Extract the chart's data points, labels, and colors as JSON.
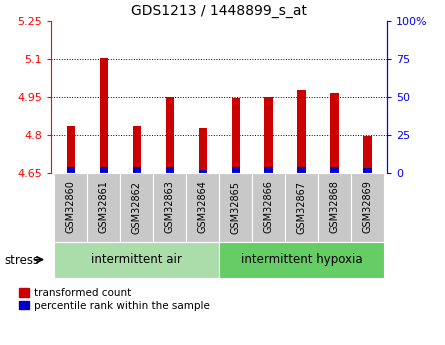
{
  "title": "GDS1213 / 1448899_s_at",
  "samples": [
    "GSM32860",
    "GSM32861",
    "GSM32862",
    "GSM32863",
    "GSM32864",
    "GSM32865",
    "GSM32866",
    "GSM32867",
    "GSM32868",
    "GSM32869"
  ],
  "red_values": [
    4.835,
    5.103,
    4.835,
    4.95,
    4.825,
    4.943,
    4.95,
    4.975,
    4.963,
    4.793
  ],
  "blue_values": [
    0.022,
    0.022,
    0.022,
    0.022,
    0.01,
    0.022,
    0.022,
    0.022,
    0.022,
    0.018
  ],
  "base": 4.65,
  "ylim_min": 4.65,
  "ylim_max": 5.25,
  "yticks_left": [
    4.65,
    4.8,
    4.95,
    5.1,
    5.25
  ],
  "yticks_right": [
    0,
    25,
    50,
    75,
    100
  ],
  "right_label": "%",
  "bar_width": 0.25,
  "red_color": "#cc0000",
  "blue_color": "#0000cc",
  "group1_label": "intermittent air",
  "group2_label": "intermittent hypoxia",
  "group1_indices": [
    0,
    1,
    2,
    3,
    4
  ],
  "group2_indices": [
    5,
    6,
    7,
    8,
    9
  ],
  "stress_label": "stress",
  "legend_red": "transformed count",
  "legend_blue": "percentile rank within the sample",
  "tick_label_bg": "#c8c8c8",
  "group_bg_light": "#aaddaa",
  "group_bg_dark": "#66cc66"
}
